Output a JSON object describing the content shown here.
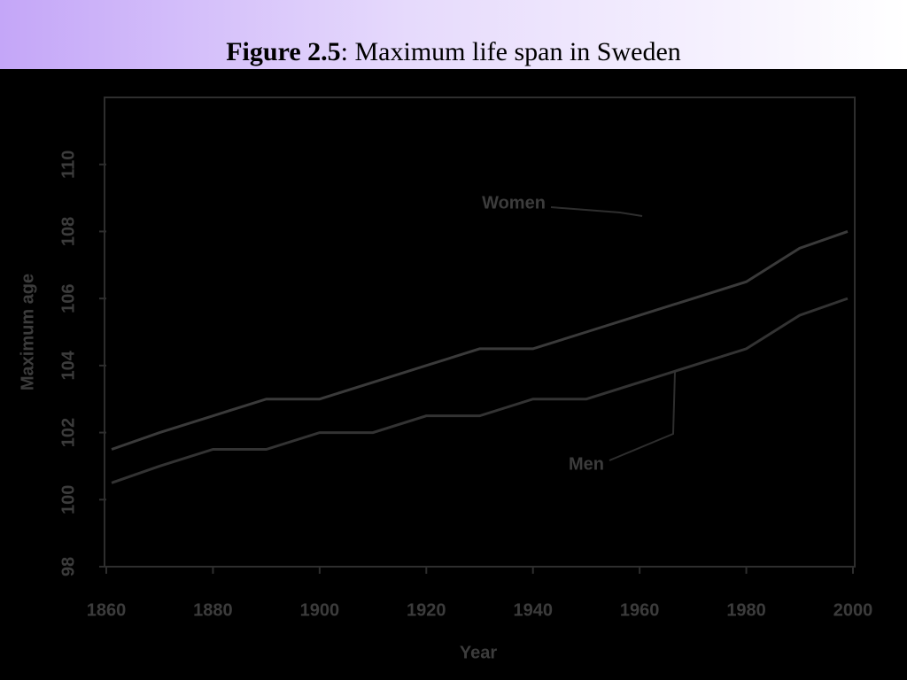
{
  "header": {
    "title_bold": "Figure 2.5",
    "title_rest": ": Maximum life span in Sweden"
  },
  "chart_data": {
    "type": "line",
    "x_label": "Year",
    "y_label": "Maximum age",
    "x": [
      1861,
      1870,
      1880,
      1890,
      1900,
      1910,
      1920,
      1930,
      1940,
      1950,
      1960,
      1970,
      1980,
      1990,
      1999
    ],
    "series": [
      {
        "name": "Women",
        "color": "#3a3a3a",
        "values": [
          101.5,
          102,
          102.5,
          103,
          103,
          103.5,
          104,
          104.5,
          104.5,
          105,
          105.5,
          106,
          106.5,
          107.5,
          108
        ]
      },
      {
        "name": "Men",
        "color": "#333333",
        "values": [
          100.5,
          101,
          101.5,
          101.5,
          102,
          102,
          102.5,
          102.5,
          103,
          103,
          103.5,
          104,
          104.5,
          105.5,
          106
        ]
      }
    ],
    "xlim": [
      1860,
      2000
    ],
    "xticks": [
      1860,
      1880,
      1900,
      1920,
      1940,
      1960,
      1980,
      2000
    ],
    "ylim": [
      98,
      112
    ],
    "yticks": [
      98,
      100,
      102,
      104,
      106,
      108,
      110
    ],
    "grid": false
  }
}
